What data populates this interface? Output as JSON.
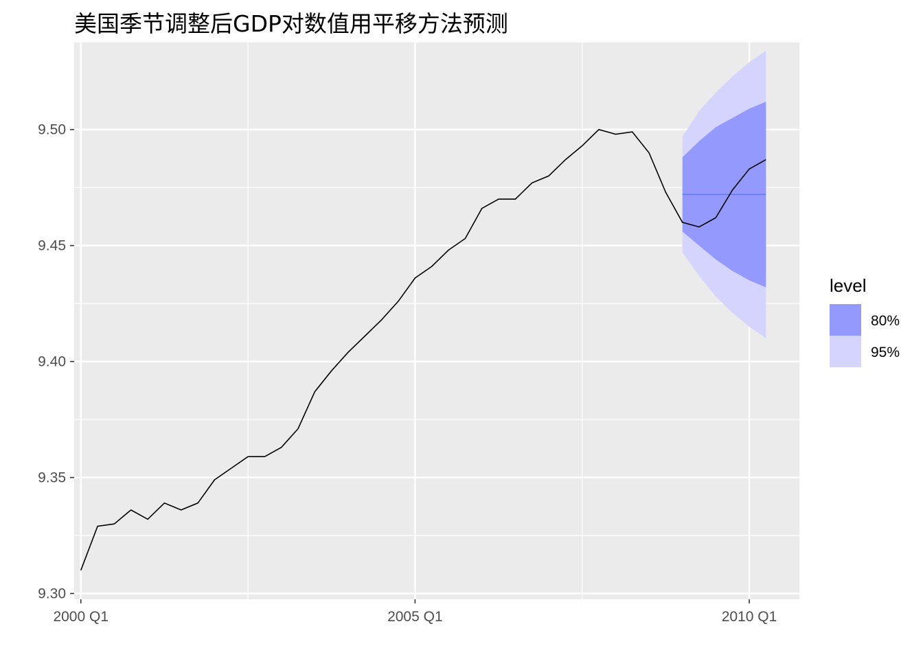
{
  "chart_data": {
    "type": "line",
    "title": "美国季节调整后GDP对数值用平移方法预测",
    "xlabel": "",
    "ylabel": "",
    "x_ticks": [
      {
        "label": "2000 Q1",
        "t": 2000.0
      },
      {
        "label": "2005 Q1",
        "t": 2005.0
      },
      {
        "label": "2010 Q1",
        "t": 2010.0
      }
    ],
    "y_ticks": [
      9.3,
      9.35,
      9.4,
      9.45,
      9.5
    ],
    "y_tick_labels": [
      "9.30",
      "9.35",
      "9.40",
      "9.45",
      "9.50"
    ],
    "xlim": [
      1999.9,
      2010.75
    ],
    "ylim": [
      9.2975,
      9.5375
    ],
    "grid": true,
    "legend_placement": "right",
    "legend": {
      "title": "level",
      "items": [
        {
          "label": "80%",
          "color": "#9499fd"
        },
        {
          "label": "95%",
          "color": "#d4d4fe"
        }
      ]
    },
    "colors": {
      "panel_bg": "#ebebeb",
      "grid": "#ffffff",
      "actual_line": "#000000",
      "forecast_line": "#5c7bfa",
      "band_80": "#9499fd",
      "band_95": "#d4d4fe"
    },
    "actual_series": {
      "name": "",
      "start": 2000.0,
      "step": 0.25,
      "values": [
        9.31,
        9.329,
        9.33,
        9.336,
        9.332,
        9.339,
        9.336,
        9.339,
        9.349,
        9.354,
        9.359,
        9.359,
        9.363,
        9.371,
        9.387,
        9.396,
        9.404,
        9.411,
        9.418,
        9.426,
        9.436,
        9.441,
        9.448,
        9.453,
        9.466,
        9.47,
        9.47,
        9.477,
        9.48,
        9.487,
        9.493,
        9.5,
        9.498,
        9.499,
        9.49,
        9.473,
        9.46,
        9.458,
        9.462,
        9.474,
        9.483,
        9.487
      ]
    },
    "forecast": {
      "name": "",
      "x": [
        2009.0,
        2009.25,
        2009.5,
        2009.75,
        2010.0,
        2010.25
      ],
      "mean": [
        9.472,
        9.472,
        9.472,
        9.472,
        9.472,
        9.472
      ],
      "lo80": [
        9.456,
        9.45,
        9.444,
        9.439,
        9.435,
        9.432
      ],
      "hi80": [
        9.488,
        9.495,
        9.501,
        9.505,
        9.509,
        9.512
      ],
      "lo95": [
        9.447,
        9.437,
        9.428,
        9.421,
        9.415,
        9.41
      ],
      "hi95": [
        9.497,
        9.508,
        9.516,
        9.523,
        9.529,
        9.534
      ]
    }
  }
}
